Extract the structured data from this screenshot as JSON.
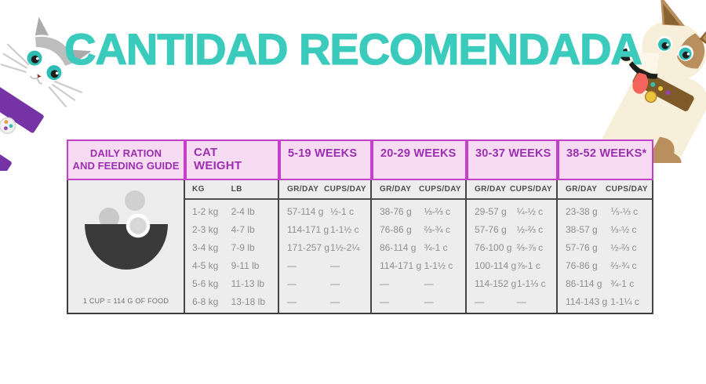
{
  "title": "CANTIDAD RECOMENDADA",
  "colors": {
    "title_teal": "#3BCBBD",
    "header_purple": "#9C2FB0",
    "magenta_border": "#C340C9",
    "pink_header_bg": "#F7DBF3",
    "table_body_bg": "#EDEDED",
    "body_text_gray": "#8F8F8F"
  },
  "illustrations": {
    "left": "cat-peeking-icon",
    "right": "dog-peeking-icon"
  },
  "table": {
    "guide_header_line1": "DAILY RATION",
    "guide_header_line2": "AND FEEDING GUIDE",
    "cup_note": "1 CUP = 114 G OF FOOD",
    "weight_header_line1": "CAT",
    "weight_header_line2": "WEIGHT",
    "kg_label": "KG",
    "lb_label": "LB",
    "gr_label": "GR/DAY",
    "cups_label": "CUPS/DAY",
    "week_headers": [
      "5-19 WEEKS",
      "20-29 WEEKS",
      "30-37 WEEKS",
      "38-52 WEEKS*"
    ],
    "rows": [
      {
        "kg": "1-2 kg",
        "lb": "2-4 lb",
        "weeks": [
          [
            "57-114 g",
            "½-1 c"
          ],
          [
            "38-76 g",
            "⅓-⅔ c"
          ],
          [
            "29-57 g",
            "¼-½ c"
          ],
          [
            "23-38 g",
            "⅕-⅓ c"
          ]
        ]
      },
      {
        "kg": "2-3 kg",
        "lb": "4-7 lb",
        "weeks": [
          [
            "114-171 g",
            "1-1½ c"
          ],
          [
            "76-86 g",
            "⅔-¾ c"
          ],
          [
            "57-76 g",
            "½-⅔ c"
          ],
          [
            "38-57 g",
            "⅓-½ c"
          ]
        ]
      },
      {
        "kg": "3-4 kg",
        "lb": "7-9 lb",
        "weeks": [
          [
            "171-257 g",
            "1½-2¼"
          ],
          [
            "86-114 g",
            "¾-1 c"
          ],
          [
            "76-100 g",
            "⅔-⅞ c"
          ],
          [
            "57-76 g",
            "½-⅔ c"
          ]
        ]
      },
      {
        "kg": "4-5 kg",
        "lb": "9-11 lb",
        "weeks": [
          [
            "—",
            "—"
          ],
          [
            "114-171 g",
            "1-1½ c"
          ],
          [
            "100-114 g",
            "⅞-1 c"
          ],
          [
            "76-86 g",
            "⅔-¾ c"
          ]
        ]
      },
      {
        "kg": "5-6 kg",
        "lb": "11-13 lb",
        "weeks": [
          [
            "—",
            "—"
          ],
          [
            "—",
            "—"
          ],
          [
            "114-152 g",
            "1-1⅓ c"
          ],
          [
            "86-114 g",
            "¾-1 c"
          ]
        ]
      },
      {
        "kg": "6-8 kg",
        "lb": "13-18 lb",
        "weeks": [
          [
            "—",
            "—"
          ],
          [
            "—",
            "—"
          ],
          [
            "—",
            "—"
          ],
          [
            "114-143 g",
            "1-1¼ c"
          ]
        ]
      }
    ]
  },
  "chart_data": {
    "type": "table",
    "title": "CANTIDAD RECOMENDADA",
    "note": "1 CUP = 114 G OF FOOD",
    "columns": [
      "KG",
      "LB",
      "5-19 WEEKS GR/DAY",
      "5-19 WEEKS CUPS/DAY",
      "20-29 WEEKS GR/DAY",
      "20-29 WEEKS CUPS/DAY",
      "30-37 WEEKS GR/DAY",
      "30-37 WEEKS CUPS/DAY",
      "38-52 WEEKS* GR/DAY",
      "38-52 WEEKS* CUPS/DAY"
    ],
    "rows": [
      [
        "1-2 kg",
        "2-4 lb",
        "57-114 g",
        "½-1 c",
        "38-76 g",
        "⅓-⅔ c",
        "29-57 g",
        "¼-½ c",
        "23-38 g",
        "⅕-⅓ c"
      ],
      [
        "2-3 kg",
        "4-7 lb",
        "114-171 g",
        "1-1½ c",
        "76-86 g",
        "⅔-¾ c",
        "57-76 g",
        "½-⅔ c",
        "38-57 g",
        "⅓-½ c"
      ],
      [
        "3-4 kg",
        "7-9 lb",
        "171-257 g",
        "1½-2¼",
        "86-114 g",
        "¾-1 c",
        "76-100 g",
        "⅔-⅞ c",
        "57-76 g",
        "½-⅔ c"
      ],
      [
        "4-5 kg",
        "9-11 lb",
        "—",
        "—",
        "114-171 g",
        "1-1½ c",
        "100-114 g",
        "⅞-1 c",
        "76-86 g",
        "⅔-¾ c"
      ],
      [
        "5-6 kg",
        "11-13 lb",
        "—",
        "—",
        "—",
        "—",
        "114-152 g",
        "1-1⅓ c",
        "86-114 g",
        "¾-1 c"
      ],
      [
        "6-8 kg",
        "13-18 lb",
        "—",
        "—",
        "—",
        "—",
        "—",
        "—",
        "114-143 g",
        "1-1¼ c"
      ]
    ]
  }
}
